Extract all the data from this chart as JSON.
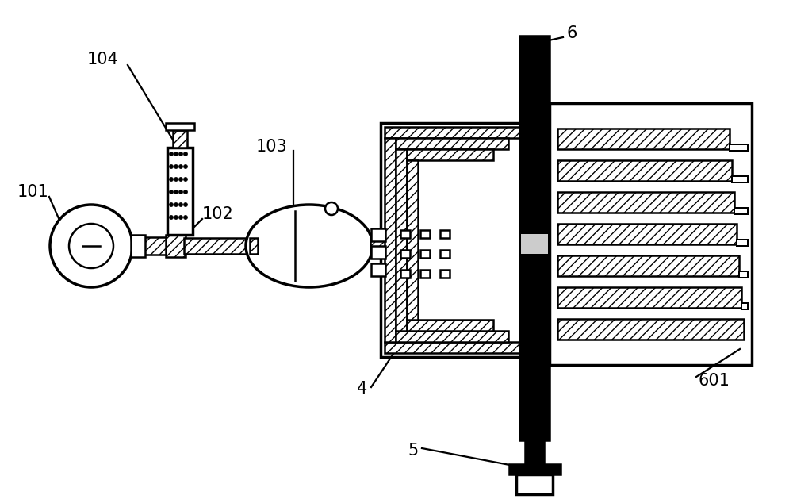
{
  "bg_color": "#ffffff",
  "lc": "#000000",
  "black": "#000000",
  "white": "#ffffff",
  "lw_main": 1.8,
  "lw_thick": 2.5,
  "font_size": 15,
  "labels": {
    "101": [
      55,
      430,
      90,
      370
    ],
    "102": [
      248,
      248,
      295,
      272
    ],
    "103": [
      368,
      190,
      420,
      215
    ],
    "104": [
      130,
      90,
      195,
      115
    ],
    "4": [
      480,
      490,
      545,
      450
    ],
    "5": [
      530,
      570,
      598,
      555
    ],
    "6": [
      710,
      48,
      650,
      78
    ],
    "601": [
      890,
      480,
      855,
      455
    ]
  }
}
